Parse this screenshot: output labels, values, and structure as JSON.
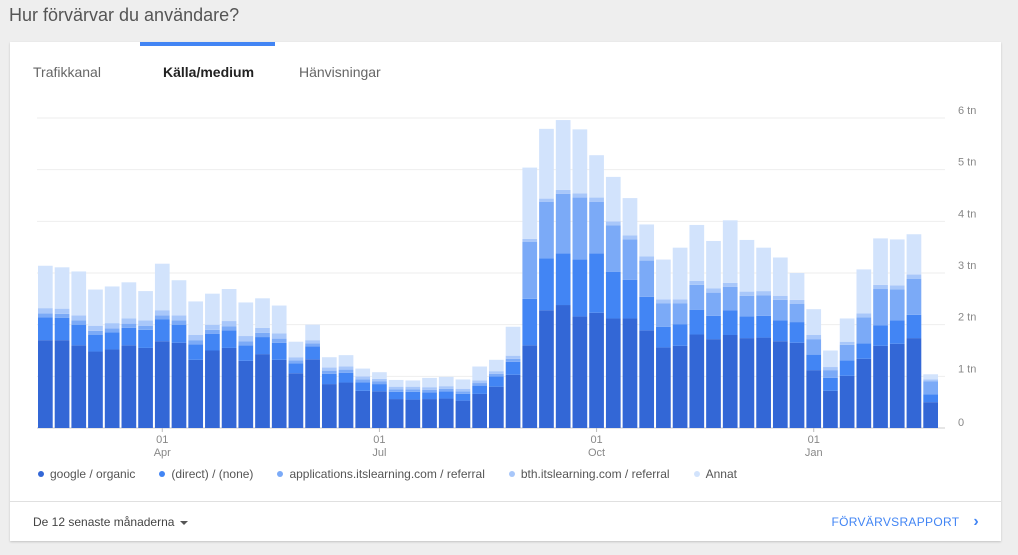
{
  "page": {
    "title": "Hur förvärvar du användare?"
  },
  "tabs": [
    {
      "label": "Trafikkanal",
      "active": false
    },
    {
      "label": "Källa/medium",
      "active": true
    },
    {
      "label": "Hänvisningar",
      "active": false
    }
  ],
  "footer": {
    "period_label": "De 12 senaste månaderna",
    "report_link": "FÖRVÄRVSRAPPORT"
  },
  "colors": {
    "accent": "#4285f4",
    "series": [
      "#3367d6",
      "#4285f4",
      "#7baaf7",
      "#a8c7fa",
      "#d2e3fc"
    ]
  },
  "icons": {
    "period_caret": "caret-down-icon",
    "report_chevron": "chevron-right-icon"
  },
  "chart_data": {
    "type": "bar",
    "stacked": true,
    "y_axis_position": "right",
    "legend_position": "bottom",
    "ylim": [
      0,
      6000
    ],
    "y_ticks": [
      "0",
      "1 tn",
      "2 tn",
      "3 tn",
      "4 tn",
      "5 tn",
      "6 tn"
    ],
    "x_ticks": [
      {
        "index": 7,
        "day": "01",
        "month": "Apr"
      },
      {
        "index": 20,
        "day": "01",
        "month": "Jul"
      },
      {
        "index": 33,
        "day": "01",
        "month": "Oct"
      },
      {
        "index": 46,
        "day": "01",
        "month": "Jan"
      }
    ],
    "series": [
      {
        "name": "google / organic",
        "values": [
          1700,
          1700,
          1600,
          1480,
          1520,
          1600,
          1550,
          1680,
          1650,
          1320,
          1500,
          1550,
          1300,
          1430,
          1320,
          1060,
          1330,
          850,
          880,
          720,
          710,
          560,
          550,
          560,
          570,
          530,
          660,
          800,
          1030,
          1600,
          2280,
          2380,
          2160,
          2230,
          2120,
          2120,
          1890,
          1560,
          1590,
          1810,
          1720,
          1800,
          1740,
          1750,
          1680,
          1650,
          1120,
          720,
          1010,
          1340,
          1590,
          1630,
          1740,
          500
        ]
      },
      {
        "name": "(direct) / (none)",
        "values": [
          440,
          430,
          400,
          320,
          330,
          340,
          350,
          420,
          350,
          300,
          320,
          340,
          300,
          330,
          330,
          190,
          250,
          200,
          190,
          160,
          140,
          140,
          150,
          130,
          140,
          130,
          160,
          200,
          250,
          900,
          1000,
          1000,
          1100,
          1150,
          900,
          750,
          650,
          400,
          420,
          480,
          450,
          480,
          420,
          420,
          400,
          400,
          300,
          250,
          300,
          300,
          400,
          450,
          450,
          150
        ]
      },
      {
        "name": "applications.itslearning.com / referral",
        "values": [
          80,
          80,
          80,
          80,
          80,
          80,
          80,
          80,
          80,
          80,
          80,
          80,
          80,
          80,
          80,
          60,
          60,
          60,
          60,
          60,
          50,
          50,
          50,
          50,
          50,
          50,
          50,
          50,
          60,
          1100,
          1100,
          1150,
          1200,
          1000,
          900,
          780,
          700,
          450,
          400,
          480,
          450,
          450,
          400,
          400,
          400,
          350,
          300,
          150,
          300,
          500,
          700,
          600,
          700,
          250
        ]
      },
      {
        "name": "bth.itslearning.com / referral",
        "values": [
          100,
          100,
          100,
          100,
          100,
          100,
          100,
          100,
          100,
          100,
          100,
          100,
          100,
          100,
          100,
          60,
          60,
          60,
          60,
          60,
          50,
          50,
          50,
          50,
          50,
          50,
          50,
          50,
          60,
          60,
          60,
          80,
          80,
          80,
          80,
          80,
          80,
          80,
          80,
          80,
          80,
          80,
          80,
          80,
          80,
          80,
          80,
          60,
          60,
          80,
          80,
          80,
          80,
          40
        ]
      },
      {
        "name": "Annat",
        "values": [
          820,
          800,
          850,
          700,
          710,
          700,
          570,
          900,
          680,
          650,
          600,
          620,
          650,
          570,
          540,
          300,
          300,
          200,
          220,
          150,
          130,
          130,
          120,
          180,
          180,
          180,
          270,
          220,
          560,
          1380,
          1350,
          1350,
          1240,
          820,
          860,
          720,
          620,
          770,
          1000,
          1080,
          920,
          1210,
          1000,
          840,
          740,
          520,
          500,
          320,
          450,
          850,
          900,
          890,
          780,
          100
        ]
      }
    ]
  }
}
